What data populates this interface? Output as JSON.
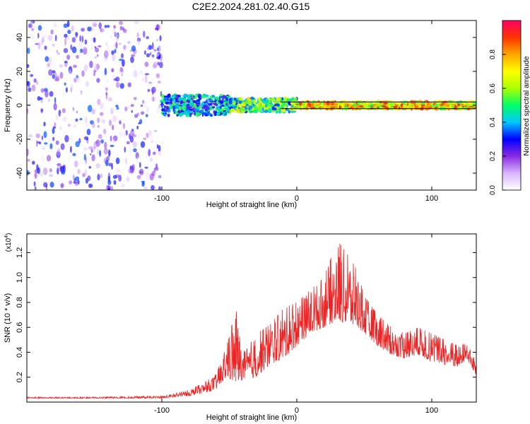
{
  "title": "C2E2.2024.281.02.40.G15",
  "chart_data": [
    {
      "type": "heatmap",
      "xlabel": "Height of straight line (km)",
      "ylabel": "Frequency (Hz)",
      "xlim": [
        -200,
        133
      ],
      "ylim": [
        -50,
        50
      ],
      "xticks": [
        -100,
        0,
        100
      ],
      "yticks": [
        -40,
        -20,
        0,
        20,
        40
      ],
      "colorbar": {
        "label": "Normalized spectral amplitude",
        "range": [
          0,
          1
        ],
        "ticks": [
          0.0,
          0.2,
          0.4,
          0.6,
          0.8
        ],
        "colors": [
          "#ffffff",
          "#d8b4ff",
          "#8a2be2",
          "#0000ff",
          "#00c8ff",
          "#00ff66",
          "#aaff00",
          "#ffff00",
          "#ffa500",
          "#ff3300",
          "#ff0066"
        ]
      },
      "reference_lines_hz": [
        2,
        -2
      ],
      "regions": [
        {
          "x_range": [
            -200,
            -100
          ],
          "description_amplitude": [
            0.0,
            0.35
          ],
          "spread_hz": 50
        },
        {
          "x_range": [
            -100,
            -50
          ],
          "description_amplitude": [
            0.2,
            0.55
          ],
          "spread_hz": 6
        },
        {
          "x_range": [
            -50,
            0
          ],
          "description_amplitude": [
            0.3,
            0.75
          ],
          "spread_hz": 4
        },
        {
          "x_range": [
            0,
            133
          ],
          "description_amplitude": [
            0.5,
            0.95
          ],
          "spread_hz": 2
        }
      ]
    },
    {
      "type": "line",
      "xlabel": "Height of straight line (km)",
      "ylabel": "SNR (10 * v/v)",
      "y_multiplier": "(x10",
      "y_multiplier_exp": "4",
      "y_multiplier_close": ")",
      "xlim": [
        -200,
        133
      ],
      "ylim": [
        0,
        1.35
      ],
      "xticks": [
        -100,
        0,
        100
      ],
      "yticks": [
        0.2,
        0.4,
        0.6,
        0.8,
        1.0,
        1.2
      ],
      "series": [
        {
          "color": "#ee2222",
          "envelope": [
            [
              -200,
              0.03,
              0.04
            ],
            [
              -150,
              0.03,
              0.04
            ],
            [
              -100,
              0.03,
              0.05
            ],
            [
              -90,
              0.04,
              0.07
            ],
            [
              -80,
              0.05,
              0.1
            ],
            [
              -70,
              0.07,
              0.15
            ],
            [
              -60,
              0.1,
              0.22
            ],
            [
              -52,
              0.2,
              0.45
            ],
            [
              -45,
              0.15,
              0.75
            ],
            [
              -40,
              0.18,
              0.4
            ],
            [
              -30,
              0.2,
              0.55
            ],
            [
              -20,
              0.3,
              0.62
            ],
            [
              -10,
              0.35,
              0.75
            ],
            [
              0,
              0.45,
              0.8
            ],
            [
              10,
              0.55,
              0.9
            ],
            [
              20,
              0.6,
              1.0
            ],
            [
              30,
              0.65,
              1.3
            ],
            [
              40,
              0.62,
              1.15
            ],
            [
              45,
              0.6,
              1.05
            ],
            [
              50,
              0.55,
              0.85
            ],
            [
              60,
              0.45,
              0.7
            ],
            [
              70,
              0.38,
              0.6
            ],
            [
              80,
              0.35,
              0.55
            ],
            [
              90,
              0.38,
              0.6
            ],
            [
              100,
              0.32,
              0.55
            ],
            [
              110,
              0.3,
              0.5
            ],
            [
              120,
              0.28,
              0.45
            ],
            [
              126,
              0.35,
              0.5
            ],
            [
              133,
              0.2,
              0.3
            ]
          ]
        }
      ]
    }
  ]
}
